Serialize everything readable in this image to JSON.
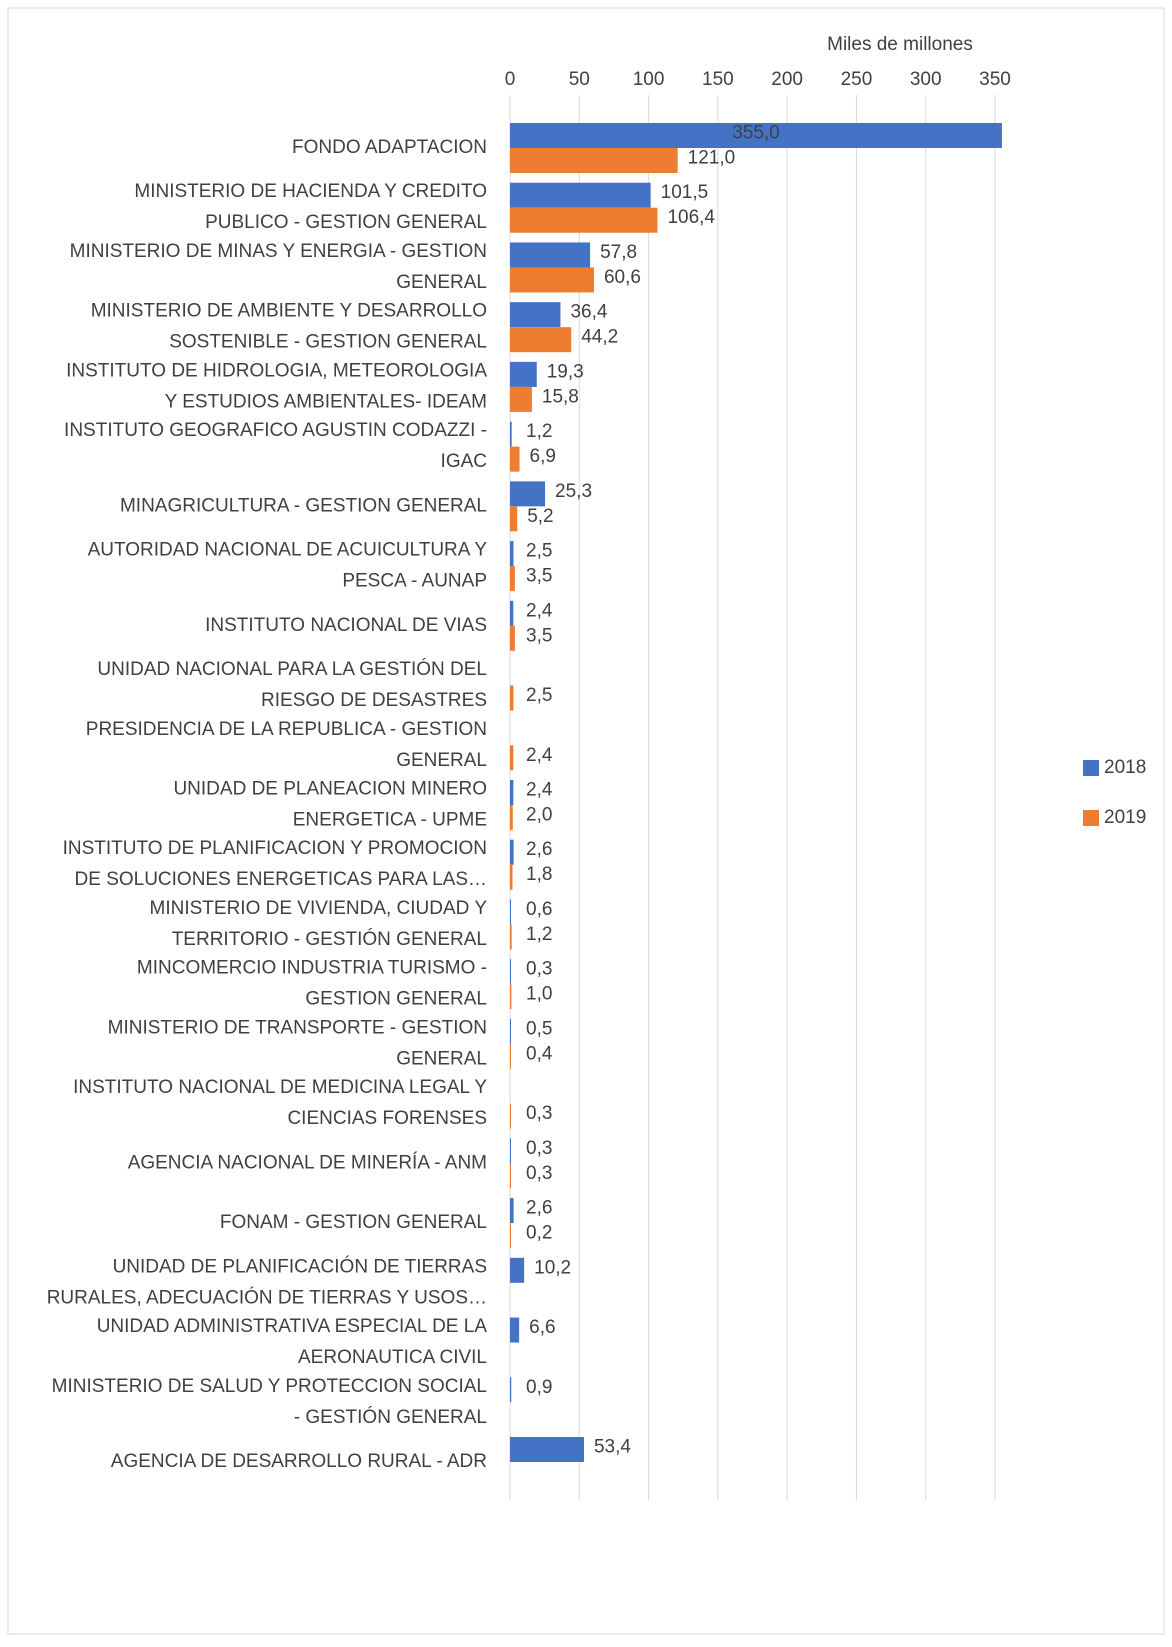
{
  "chart_data": {
    "type": "bar",
    "orientation": "horizontal",
    "axis_title": "Miles de millones",
    "categories": [
      [
        "FONDO ADAPTACION"
      ],
      [
        "MINISTERIO DE HACIENDA Y CREDITO",
        "PUBLICO - GESTION GENERAL"
      ],
      [
        "MINISTERIO DE MINAS Y ENERGIA - GESTION",
        "GENERAL"
      ],
      [
        "MINISTERIO DE AMBIENTE Y DESARROLLO",
        "SOSTENIBLE - GESTION GENERAL"
      ],
      [
        "INSTITUTO DE HIDROLOGIA, METEOROLOGIA",
        "Y ESTUDIOS AMBIENTALES- IDEAM"
      ],
      [
        "INSTITUTO GEOGRAFICO AGUSTIN CODAZZI -",
        "IGAC"
      ],
      [
        "MINAGRICULTURA - GESTION GENERAL"
      ],
      [
        "AUTORIDAD NACIONAL DE ACUICULTURA Y",
        "PESCA - AUNAP"
      ],
      [
        "INSTITUTO NACIONAL DE VIAS"
      ],
      [
        "UNIDAD NACIONAL PARA LA GESTIÓN DEL",
        "RIESGO DE DESASTRES"
      ],
      [
        "PRESIDENCIA DE LA REPUBLICA - GESTION",
        "GENERAL"
      ],
      [
        "UNIDAD DE PLANEACION MINERO",
        "ENERGETICA - UPME"
      ],
      [
        "INSTITUTO DE PLANIFICACION Y PROMOCION",
        "DE SOLUCIONES  ENERGETICAS PARA LAS…"
      ],
      [
        "MINISTERIO DE VIVIENDA, CIUDAD Y",
        "TERRITORIO - GESTIÓN GENERAL"
      ],
      [
        "MINCOMERCIO INDUSTRIA TURISMO -",
        "GESTION GENERAL"
      ],
      [
        "MINISTERIO DE TRANSPORTE - GESTION",
        "GENERAL"
      ],
      [
        "INSTITUTO NACIONAL DE MEDICINA LEGAL Y",
        "CIENCIAS FORENSES"
      ],
      [
        "AGENCIA NACIONAL DE MINERÍA - ANM"
      ],
      [
        "FONAM - GESTION GENERAL"
      ],
      [
        "UNIDAD DE PLANIFICACIÓN DE TIERRAS",
        "RURALES, ADECUACIÓN DE TIERRAS Y USOS…"
      ],
      [
        "UNIDAD ADMINISTRATIVA ESPECIAL DE LA",
        "AERONAUTICA CIVIL"
      ],
      [
        "MINISTERIO DE SALUD Y PROTECCION SOCIAL",
        "- GESTIÓN GENERAL"
      ],
      [
        "AGENCIA DE DESARROLLO RURAL - ADR"
      ]
    ],
    "series": [
      {
        "name": "2018",
        "color": "#4472c4",
        "values": [
          355.0,
          101.5,
          57.8,
          36.4,
          19.3,
          1.2,
          25.3,
          2.5,
          2.4,
          null,
          null,
          2.4,
          2.6,
          0.6,
          0.3,
          0.5,
          null,
          0.3,
          2.6,
          10.2,
          6.6,
          0.9,
          53.4
        ],
        "value_labels": [
          "355,0",
          "101,5",
          "57,8",
          "36,4",
          "19,3",
          "1,2",
          "25,3",
          "2,5",
          "2,4",
          null,
          null,
          "2,4",
          "2,6",
          "0,6",
          "0,3",
          "0,5",
          null,
          "0,3",
          "2,6",
          "10,2",
          "6,6",
          "0,9",
          "53,4"
        ]
      },
      {
        "name": "2019",
        "color": "#ed7d31",
        "values": [
          121.0,
          106.4,
          60.6,
          44.2,
          15.8,
          6.9,
          5.2,
          3.5,
          3.5,
          2.5,
          2.4,
          2.0,
          1.8,
          1.2,
          1.0,
          0.4,
          0.3,
          0.3,
          0.2,
          null,
          null,
          null,
          null
        ],
        "value_labels": [
          "121,0",
          "106,4",
          "60,6",
          "44,2",
          "15,8",
          "6,9",
          "5,2",
          "3,5",
          "3,5",
          "2,5",
          "2,4",
          "2,0",
          "1,8",
          "1,2",
          "1,0",
          "0,4",
          "0,3",
          "0,3",
          "0,2",
          null,
          null,
          null,
          null
        ]
      }
    ],
    "xlim": [
      0,
      350
    ],
    "xticks": [
      0,
      50,
      100,
      150,
      200,
      250,
      300,
      350
    ],
    "grid": true,
    "legend": "right"
  }
}
